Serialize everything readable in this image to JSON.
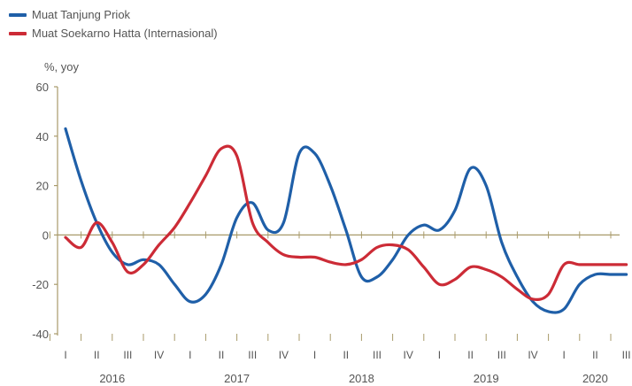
{
  "chart_data": {
    "type": "line",
    "ylabel": "%, yoy",
    "ylim": [
      -40,
      60
    ],
    "yticks": [
      -40,
      -20,
      0,
      20,
      40,
      60
    ],
    "grid": false,
    "legend_position": "top-left",
    "quarters": [
      "I",
      "II",
      "III",
      "IV",
      "I",
      "II",
      "III",
      "IV",
      "I",
      "II",
      "III",
      "IV",
      "I",
      "II",
      "III",
      "IV",
      "I",
      "II",
      "III"
    ],
    "years": [
      {
        "label": "2016",
        "start": 0,
        "end": 3
      },
      {
        "label": "2017",
        "start": 4,
        "end": 7
      },
      {
        "label": "2018",
        "start": 8,
        "end": 11
      },
      {
        "label": "2019",
        "start": 12,
        "end": 15
      },
      {
        "label": "2020",
        "start": 16,
        "end": 18
      }
    ],
    "series": [
      {
        "name": "Muat Tanjung  Priok",
        "color": "#1f5fa8",
        "x": [
          0,
          0.5,
          1,
          1.5,
          2,
          2.5,
          3,
          3.5,
          4,
          4.5,
          5,
          5.5,
          6,
          6.5,
          7,
          7.5,
          8,
          8.5,
          9,
          9.5,
          10,
          10.5,
          11,
          11.5,
          12,
          12.5,
          13,
          13.5,
          14,
          14.5,
          15,
          15.5,
          16,
          16.5,
          17,
          17.5,
          18
        ],
        "values": [
          43,
          22,
          5,
          -7,
          -12,
          -10,
          -12,
          -20,
          -27,
          -24,
          -12,
          7,
          13,
          2,
          5,
          33,
          33,
          20,
          2,
          -17,
          -17,
          -10,
          0,
          4,
          2,
          10,
          27,
          20,
          -3,
          -17,
          -27,
          -31,
          -30,
          -20,
          -16,
          -16,
          -16
        ]
      },
      {
        "name": "Muat Soekarno  Hatta (Internasional)",
        "color": "#cc2b36",
        "x": [
          0,
          0.5,
          1,
          1.5,
          2,
          2.5,
          3,
          3.5,
          4,
          4.5,
          5,
          5.5,
          6,
          6.5,
          7,
          7.5,
          8,
          8.5,
          9,
          9.5,
          10,
          10.5,
          11,
          11.5,
          12,
          12.5,
          13,
          13.5,
          14,
          14.5,
          15,
          15.5,
          16,
          16.5,
          17,
          17.5,
          18
        ],
        "values": [
          -1,
          -5,
          5,
          -3,
          -15,
          -12,
          -4,
          3,
          13,
          24,
          35,
          32,
          5,
          -3,
          -8,
          -9,
          -9,
          -11,
          -12,
          -10,
          -5,
          -4,
          -6,
          -13,
          -20,
          -18,
          -13,
          -14,
          -17,
          -22,
          -26,
          -24,
          -12,
          -12,
          -12,
          -12,
          -12
        ]
      }
    ]
  }
}
